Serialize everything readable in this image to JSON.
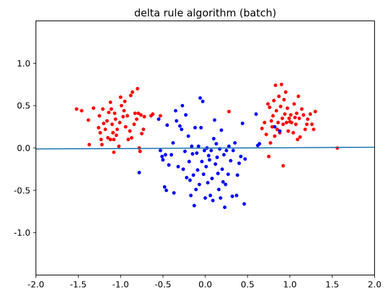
{
  "chart_data": {
    "type": "scatter",
    "title": "delta rule algorithm (batch)",
    "xlabel": "",
    "ylabel": "",
    "xlim": [
      -2.0,
      2.0
    ],
    "ylim": [
      -1.5,
      1.5
    ],
    "xticks": [
      "-2.0",
      "-1.5",
      "-1.0",
      "-0.5",
      "0.0",
      "0.5",
      "1.0",
      "1.5",
      "2.0"
    ],
    "yticks": [
      "-1.0",
      "-0.5",
      "0.0",
      "0.5",
      "1.0"
    ],
    "grid": false,
    "colors": {
      "class_a": "#ff0000",
      "class_b": "#0000ff",
      "boundary": "#1f77b4"
    },
    "series": [
      {
        "color": "#ff0000",
        "points": [
          [
            -1.52,
            0.46
          ],
          [
            -1.46,
            0.44
          ],
          [
            -1.38,
            0.33
          ],
          [
            -1.37,
            0.04
          ],
          [
            -1.32,
            0.47
          ],
          [
            -1.26,
            0.24
          ],
          [
            -1.25,
            0.38
          ],
          [
            -1.24,
            0.18
          ],
          [
            -1.23,
            0.1
          ],
          [
            -1.22,
            0.04
          ],
          [
            -1.21,
            0.46
          ],
          [
            -1.2,
            0.29
          ],
          [
            -1.18,
            0.22
          ],
          [
            -1.16,
            0.32
          ],
          [
            -1.15,
            0.12
          ],
          [
            -1.14,
            0.42
          ],
          [
            -1.12,
            0.54
          ],
          [
            -1.11,
            0.46
          ],
          [
            -1.1,
            0.28
          ],
          [
            -1.09,
            0.18
          ],
          [
            -1.08,
            0.1
          ],
          [
            -1.07,
            0.41
          ],
          [
            -1.06,
            0.34
          ],
          [
            -1.05,
            0.15
          ],
          [
            -1.04,
            0.22
          ],
          [
            -1.02,
            0.02
          ],
          [
            -1.01,
            0.3
          ],
          [
            -1.0,
            0.6
          ],
          [
            -0.99,
            0.5
          ],
          [
            -0.97,
            0.37
          ],
          [
            -0.96,
            0.44
          ],
          [
            -0.95,
            0.55
          ],
          [
            -0.94,
            0.25
          ],
          [
            -0.92,
            0.38
          ],
          [
            -0.91,
            0.1
          ],
          [
            -0.89,
            0.2
          ],
          [
            -0.88,
            0.62
          ],
          [
            -0.87,
            0.12
          ],
          [
            -0.86,
            0.66
          ],
          [
            -0.84,
            0.28
          ],
          [
            -0.83,
            0.41
          ],
          [
            -0.81,
            0.34
          ],
          [
            -0.8,
            0.7
          ],
          [
            -0.79,
            0.41
          ],
          [
            -0.78,
            0.0
          ],
          [
            -0.77,
            -0.04
          ],
          [
            -0.76,
            0.39
          ],
          [
            -0.75,
            0.17
          ],
          [
            -0.73,
            0.22
          ],
          [
            -0.72,
            0.37
          ],
          [
            -1.12,
            0.1
          ],
          [
            -1.08,
            -0.05
          ],
          [
            -0.64,
            0.38
          ],
          [
            -0.62,
            0.4
          ],
          [
            -0.53,
            0.38
          ],
          [
            0.28,
            0.43
          ],
          [
            0.67,
            0.23
          ],
          [
            0.7,
            0.3
          ],
          [
            0.72,
            0.16
          ],
          [
            0.74,
            0.52
          ],
          [
            0.76,
            0.48
          ],
          [
            0.77,
            0.06
          ],
          [
            0.78,
            0.32
          ],
          [
            0.79,
            0.25
          ],
          [
            0.8,
            0.38
          ],
          [
            0.81,
            0.56
          ],
          [
            0.82,
            0.14
          ],
          [
            0.83,
            0.74
          ],
          [
            0.84,
            0.44
          ],
          [
            0.85,
            0.22
          ],
          [
            0.86,
            0.3
          ],
          [
            0.87,
            0.61
          ],
          [
            0.88,
            0.18
          ],
          [
            0.89,
            0.49
          ],
          [
            0.9,
            0.75
          ],
          [
            0.91,
            0.35
          ],
          [
            0.92,
            0.28
          ],
          [
            0.93,
            0.57
          ],
          [
            0.94,
            0.4
          ],
          [
            0.95,
            0.66
          ],
          [
            0.96,
            0.3
          ],
          [
            0.97,
            0.47
          ],
          [
            0.98,
            0.2
          ],
          [
            0.99,
            0.35
          ],
          [
            1.0,
            0.31
          ],
          [
            1.01,
            0.39
          ],
          [
            1.02,
            0.3
          ],
          [
            1.04,
            0.18
          ],
          [
            1.05,
            0.52
          ],
          [
            1.06,
            0.36
          ],
          [
            1.07,
            0.28
          ],
          [
            1.08,
            0.41
          ],
          [
            1.09,
            0.1
          ],
          [
            1.1,
            0.61
          ],
          [
            1.11,
            0.35
          ],
          [
            1.12,
            0.13
          ],
          [
            1.14,
            0.46
          ],
          [
            1.16,
            0.39
          ],
          [
            1.18,
            0.22
          ],
          [
            1.2,
            0.28
          ],
          [
            1.21,
            0.34
          ],
          [
            1.24,
            0.4
          ],
          [
            1.26,
            0.28
          ],
          [
            1.28,
            0.22
          ],
          [
            1.3,
            0.43
          ],
          [
            0.75,
            -0.1
          ],
          [
            0.92,
            -0.21
          ],
          [
            1.56,
            0.0
          ]
        ]
      },
      {
        "color": "#0000ff",
        "points": [
          [
            -0.78,
            -0.29
          ],
          [
            -0.55,
            0.34
          ],
          [
            -0.53,
            -0.03
          ],
          [
            -0.51,
            -0.1
          ],
          [
            -0.5,
            -0.14
          ],
          [
            -0.48,
            -0.46
          ],
          [
            -0.47,
            -0.08
          ],
          [
            -0.46,
            -0.5
          ],
          [
            -0.45,
            0.27
          ],
          [
            -0.43,
            -0.2
          ],
          [
            -0.4,
            -0.08
          ],
          [
            -0.38,
            0.06
          ],
          [
            -0.37,
            -0.53
          ],
          [
            -0.35,
            0.44
          ],
          [
            -0.34,
            0.32
          ],
          [
            -0.32,
            -0.22
          ],
          [
            -0.3,
            0.26
          ],
          [
            -0.28,
            0.22
          ],
          [
            -0.27,
            0.5
          ],
          [
            -0.26,
            -0.25
          ],
          [
            -0.24,
            -0.04
          ],
          [
            -0.23,
            0.39
          ],
          [
            -0.22,
            -0.35
          ],
          [
            -0.2,
            0.14
          ],
          [
            -0.19,
            -0.16
          ],
          [
            -0.18,
            -0.38
          ],
          [
            -0.17,
            -0.56
          ],
          [
            -0.16,
            0.02
          ],
          [
            -0.15,
            -0.07
          ],
          [
            -0.14,
            -0.32
          ],
          [
            -0.13,
            -0.68
          ],
          [
            -0.12,
            0.24
          ],
          [
            -0.11,
            -0.49
          ],
          [
            -0.1,
            -0.06
          ],
          [
            -0.09,
            -0.26
          ],
          [
            -0.08,
            0.02
          ],
          [
            -0.07,
            -0.43
          ],
          [
            -0.06,
            0.59
          ],
          [
            -0.05,
            0.24
          ],
          [
            -0.04,
            -0.16
          ],
          [
            -0.03,
            0.55
          ],
          [
            -0.02,
            -0.31
          ],
          [
            -0.01,
            -0.03
          ],
          [
            0.0,
            -0.59
          ],
          [
            0.01,
            -0.22
          ],
          [
            0.02,
            0.0
          ],
          [
            0.03,
            -0.41
          ],
          [
            0.04,
            -0.09
          ],
          [
            0.05,
            -0.14
          ],
          [
            0.06,
            -0.56
          ],
          [
            0.07,
            -0.03
          ],
          [
            0.08,
            -0.36
          ],
          [
            0.09,
            -0.62
          ],
          [
            0.1,
            0.11
          ],
          [
            0.11,
            0.33
          ],
          [
            0.12,
            -0.19
          ],
          [
            0.13,
            0.05
          ],
          [
            0.14,
            -0.11
          ],
          [
            0.15,
            -0.3
          ],
          [
            0.16,
            -0.49
          ],
          [
            0.17,
            -0.01
          ],
          [
            0.18,
            -0.59
          ],
          [
            0.19,
            0.21
          ],
          [
            0.2,
            -0.25
          ],
          [
            0.21,
            -0.4
          ],
          [
            0.22,
            -0.08
          ],
          [
            0.23,
            -0.7
          ],
          [
            0.24,
            -0.43
          ],
          [
            0.25,
            -0.03
          ],
          [
            0.27,
            -0.31
          ],
          [
            0.28,
            0.02
          ],
          [
            0.3,
            -0.15
          ],
          [
            0.32,
            -0.57
          ],
          [
            0.33,
            -0.03
          ],
          [
            0.35,
            0.06
          ],
          [
            0.37,
            -0.56
          ],
          [
            0.38,
            -0.32
          ],
          [
            0.4,
            -0.18
          ],
          [
            0.42,
            -0.1
          ],
          [
            0.44,
            0.29
          ],
          [
            0.46,
            -0.66
          ],
          [
            0.47,
            -0.13
          ],
          [
            0.6,
            0.4
          ],
          [
            0.62,
            0.03
          ],
          [
            0.64,
            0.05
          ],
          [
            0.82,
            0.25
          ],
          [
            0.88,
            0.2
          ]
        ]
      }
    ],
    "boundary_line": {
      "x": [
        -2.0,
        2.0
      ],
      "y": [
        -0.012,
        0.008
      ]
    }
  }
}
